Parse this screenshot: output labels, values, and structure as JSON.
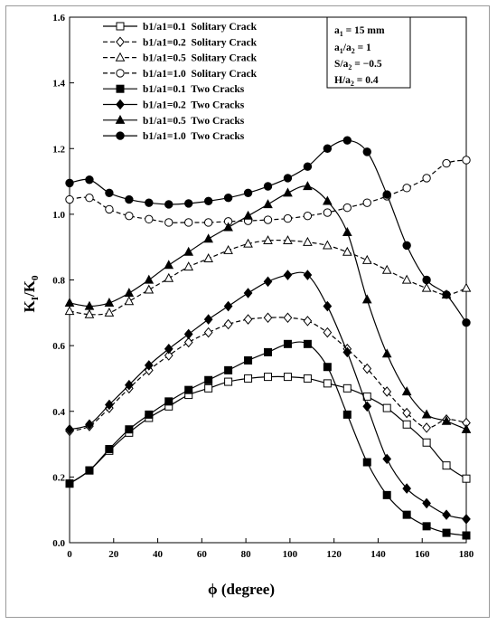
{
  "chart_data": {
    "type": "line",
    "xlabel": "ϕ (degree)",
    "ylabel_main": "K",
    "ylabel_sub1": "I",
    "ylabel_mid": "/K",
    "ylabel_sub2": "0",
    "xlim": [
      0,
      180
    ],
    "ylim": [
      0,
      1.6
    ],
    "xticks": [
      0,
      20,
      40,
      60,
      80,
      100,
      120,
      140,
      160,
      180
    ],
    "yticks": [
      0.0,
      0.2,
      0.4,
      0.6,
      0.8,
      1.0,
      1.2,
      1.4,
      1.6
    ],
    "ytick_labels": [
      "0.0",
      "0.2",
      "0.4",
      "0.6",
      "0.8",
      "1.0",
      "1.2",
      "1.4",
      "1.6"
    ],
    "grid": false,
    "legend_position": "top-left",
    "annotation": {
      "line1_main": "a",
      "line1_sub": "1",
      "line1_rest": " = 15 mm",
      "line2_main": "a",
      "line2_sub": "1",
      "line2_mid": "/a",
      "line2_sub2": "2",
      "line2_rest": " = 1",
      "line3_main": "S/a",
      "line3_sub": "2",
      "line3_rest": " = −0.5",
      "line4_main": "H/a",
      "line4_sub": "2",
      "line4_rest": " = 0.4"
    },
    "x": [
      0,
      9,
      18,
      27,
      36,
      45,
      54,
      63,
      72,
      81,
      90,
      99,
      108,
      117,
      126,
      135,
      144,
      153,
      162,
      171,
      180
    ],
    "series": [
      {
        "name": "b1/a1=0.1  Solitary Crack",
        "dash": "solid",
        "marker": "square",
        "fill": "open",
        "values": [
          0.18,
          0.22,
          0.28,
          0.335,
          0.38,
          0.415,
          0.45,
          0.47,
          0.49,
          0.5,
          0.505,
          0.505,
          0.5,
          0.485,
          0.47,
          0.445,
          0.41,
          0.36,
          0.305,
          0.235,
          0.195
        ]
      },
      {
        "name": "b1/a1=0.2  Solitary Crack",
        "dash": "dashed",
        "marker": "diamond",
        "fill": "open",
        "values": [
          0.34,
          0.355,
          0.41,
          0.47,
          0.525,
          0.57,
          0.61,
          0.64,
          0.665,
          0.68,
          0.685,
          0.685,
          0.675,
          0.64,
          0.59,
          0.53,
          0.46,
          0.395,
          0.35,
          0.375,
          0.365
        ]
      },
      {
        "name": "b1/a1=0.5  Solitary Crack",
        "dash": "dashed",
        "marker": "triangle",
        "fill": "open",
        "values": [
          0.705,
          0.695,
          0.7,
          0.735,
          0.77,
          0.805,
          0.84,
          0.865,
          0.89,
          0.91,
          0.92,
          0.92,
          0.915,
          0.905,
          0.885,
          0.86,
          0.83,
          0.8,
          0.775,
          0.755,
          0.775
        ]
      },
      {
        "name": "b1/a1=1.0  Solitary Crack",
        "dash": "dashed",
        "marker": "circle",
        "fill": "open",
        "values": [
          1.045,
          1.05,
          1.015,
          0.995,
          0.985,
          0.975,
          0.975,
          0.975,
          0.978,
          0.98,
          0.983,
          0.987,
          0.995,
          1.005,
          1.02,
          1.035,
          1.055,
          1.08,
          1.11,
          1.155,
          1.165
        ]
      },
      {
        "name": "b1/a1=0.1  Two Cracks",
        "dash": "solid",
        "marker": "square",
        "fill": "filled",
        "values": [
          0.18,
          0.22,
          0.285,
          0.345,
          0.39,
          0.43,
          0.465,
          0.495,
          0.525,
          0.555,
          0.58,
          0.605,
          0.605,
          0.535,
          0.39,
          0.245,
          0.145,
          0.085,
          0.05,
          0.03,
          0.022
        ]
      },
      {
        "name": "b1/a1=0.2  Two Cracks",
        "dash": "solid",
        "marker": "diamond",
        "fill": "filled",
        "values": [
          0.345,
          0.36,
          0.42,
          0.48,
          0.54,
          0.59,
          0.635,
          0.68,
          0.72,
          0.76,
          0.795,
          0.815,
          0.815,
          0.72,
          0.58,
          0.415,
          0.255,
          0.165,
          0.12,
          0.085,
          0.072
        ]
      },
      {
        "name": "b1/a1=0.5  Two Cracks",
        "dash": "solid",
        "marker": "triangle",
        "fill": "filled",
        "values": [
          0.73,
          0.72,
          0.73,
          0.76,
          0.8,
          0.845,
          0.885,
          0.925,
          0.96,
          0.995,
          1.03,
          1.065,
          1.085,
          1.04,
          0.945,
          0.74,
          0.575,
          0.46,
          0.39,
          0.37,
          0.345
        ]
      },
      {
        "name": "b1/a1=1.0  Two Cracks",
        "dash": "solid",
        "marker": "circle",
        "fill": "filled",
        "values": [
          1.095,
          1.105,
          1.065,
          1.045,
          1.035,
          1.03,
          1.033,
          1.04,
          1.05,
          1.065,
          1.085,
          1.11,
          1.145,
          1.2,
          1.225,
          1.19,
          1.06,
          0.905,
          0.8,
          0.755,
          0.67
        ]
      }
    ]
  }
}
